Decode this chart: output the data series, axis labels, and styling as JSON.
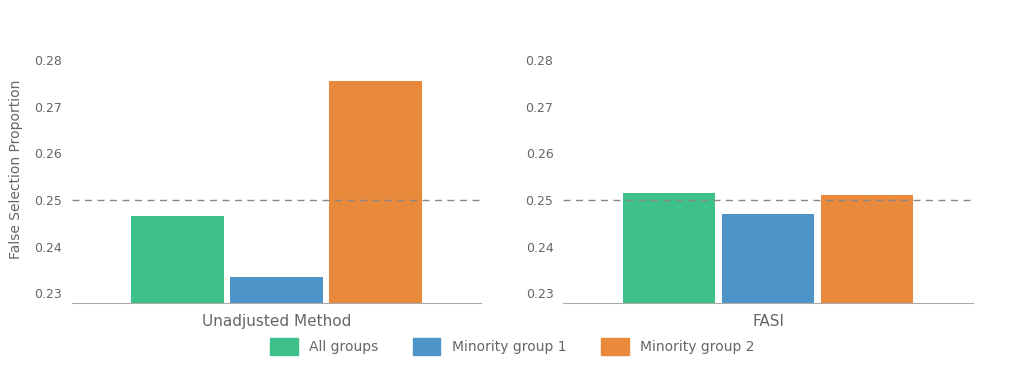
{
  "unadjusted_values": [
    0.2465,
    0.2335,
    0.2755
  ],
  "fasi_values": [
    0.2515,
    0.247,
    0.251
  ],
  "categories": [
    "All groups",
    "Minority group 1",
    "Minority group 2"
  ],
  "colors": [
    "#3ec08a",
    "#4e94c8",
    "#e8893c"
  ],
  "xlabel_left": "Unadjusted Method",
  "xlabel_right": "FASI",
  "ylabel": "False Selection Proportion",
  "ylim": [
    0.228,
    0.285
  ],
  "yticks": [
    0.23,
    0.24,
    0.25,
    0.26,
    0.27,
    0.28
  ],
  "hline_y": 0.25,
  "background_color": "#ffffff",
  "bar_width": 0.28,
  "group_positions": [
    -0.3,
    0.0,
    0.3
  ],
  "legend_labels": [
    "All groups",
    "Minority group 1",
    "Minority group 2"
  ]
}
